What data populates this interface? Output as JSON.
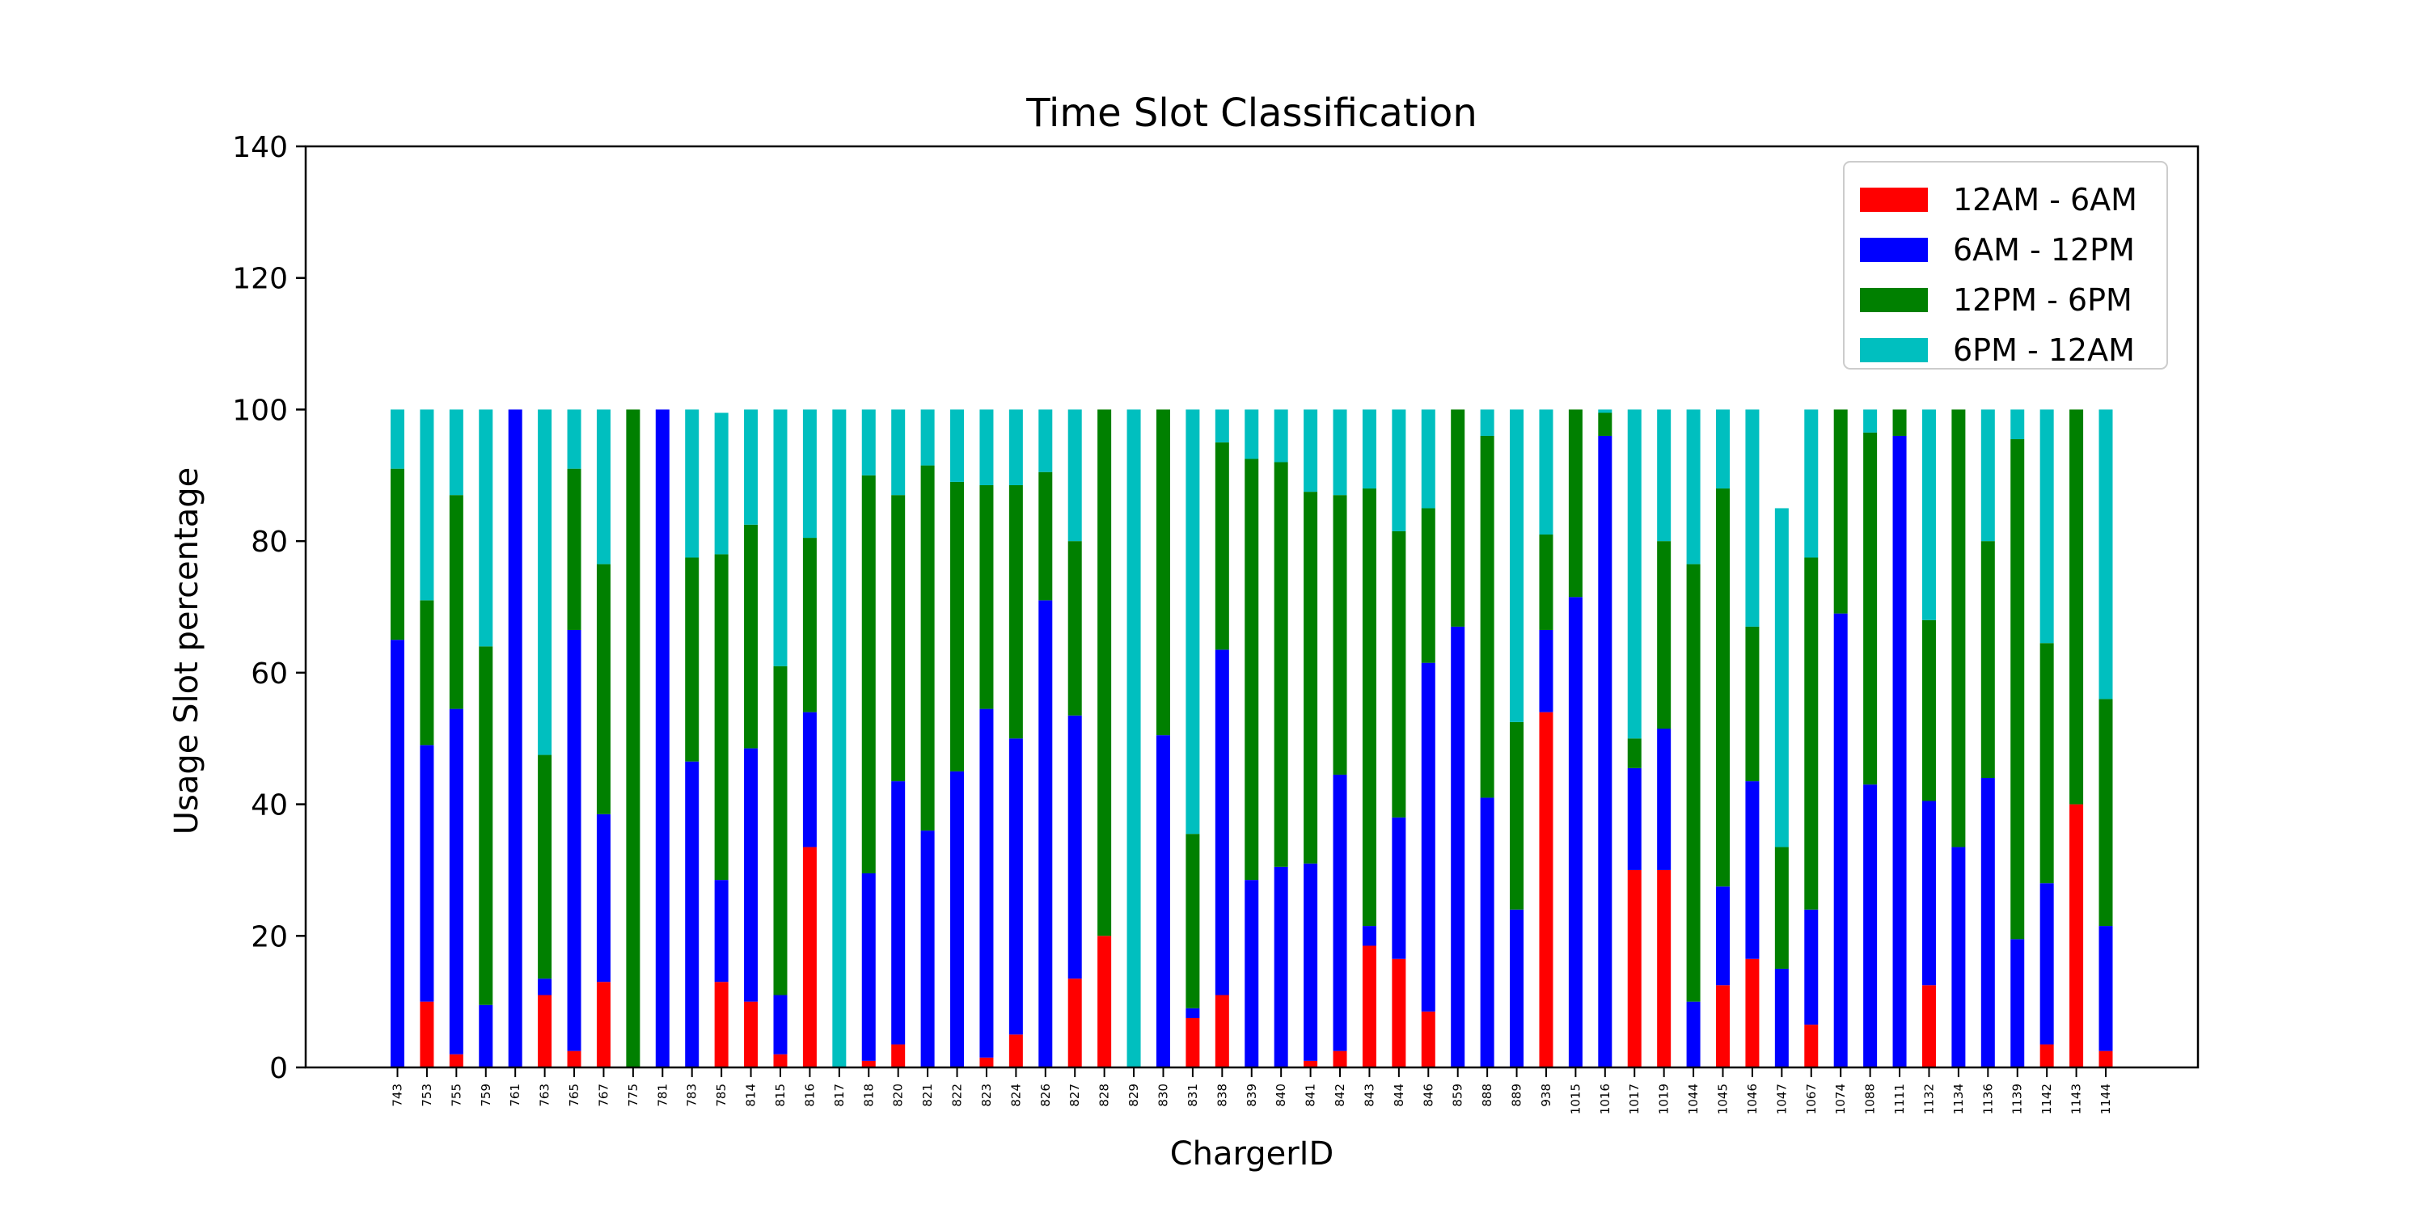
{
  "chart_data": {
    "type": "bar",
    "stacked": true,
    "title": "Time Slot Classification",
    "xlabel": "ChargerID",
    "ylabel": "Usage Slot percentage",
    "ylim": [
      0,
      140
    ],
    "yticks": [
      0,
      20,
      40,
      60,
      80,
      100,
      120,
      140
    ],
    "grid": false,
    "legend_position": "top-right",
    "categories": [
      "743",
      "753",
      "755",
      "759",
      "761",
      "763",
      "765",
      "767",
      "775",
      "781",
      "783",
      "785",
      "814",
      "815",
      "816",
      "817",
      "818",
      "820",
      "821",
      "822",
      "823",
      "824",
      "826",
      "827",
      "828",
      "829",
      "830",
      "831",
      "838",
      "839",
      "840",
      "841",
      "842",
      "843",
      "844",
      "846",
      "859",
      "888",
      "889",
      "938",
      "1015",
      "1016",
      "1017",
      "1019",
      "1044",
      "1045",
      "1046",
      "1047",
      "1067",
      "1074",
      "1088",
      "1111",
      "1132",
      "1134",
      "1136",
      "1139",
      "1142",
      "1143",
      "1144"
    ],
    "series": [
      {
        "name": "12AM - 6AM",
        "color": "#ff0000",
        "values": [
          0,
          10,
          2,
          0,
          0,
          11,
          2.5,
          13,
          0,
          0,
          0,
          13,
          10,
          2,
          33.5,
          0,
          1,
          3.5,
          0,
          0,
          1.5,
          5,
          0,
          13.5,
          20,
          0,
          0,
          7.5,
          11,
          0,
          0,
          1,
          2.5,
          18.5,
          16.5,
          8.5,
          0,
          0,
          0,
          54,
          0,
          0,
          30,
          30,
          0,
          12.5,
          16.5,
          0,
          6.5,
          0,
          0,
          0,
          12.5,
          0,
          0,
          0,
          3.5,
          40,
          2.5
        ]
      },
      {
        "name": "6AM - 12PM",
        "color": "#0000ff",
        "values": [
          65,
          39,
          52.5,
          9.5,
          100,
          2.5,
          64,
          25.5,
          0,
          100,
          46.5,
          15.5,
          38.5,
          9,
          20.5,
          0,
          28.5,
          40,
          36,
          45,
          53,
          45,
          71,
          40,
          0,
          0,
          50.5,
          1.5,
          52.5,
          28.5,
          30.5,
          30,
          42,
          3,
          21.5,
          53,
          67,
          41,
          24,
          12.5,
          71.5,
          96,
          15.5,
          21.5,
          10,
          15,
          27,
          15,
          17.5,
          69,
          43,
          96,
          28,
          33.5,
          44,
          19.5,
          24.5,
          0,
          19
        ]
      },
      {
        "name": "12PM - 6PM",
        "color": "#008000",
        "values": [
          26,
          22,
          32.5,
          54.5,
          0,
          34,
          24.5,
          38,
          100,
          0,
          31,
          49.5,
          34,
          50,
          26.5,
          0,
          60.5,
          43.5,
          55.5,
          44,
          34,
          38.5,
          19.5,
          26.5,
          80,
          0,
          49.5,
          26.5,
          31.5,
          64,
          61.5,
          56.5,
          42.5,
          66.5,
          43.5,
          23.5,
          33,
          55,
          28.5,
          14.5,
          28.5,
          3.5,
          4.5,
          28.5,
          66.5,
          60.5,
          23.5,
          18.5,
          53.5,
          31,
          53.5,
          4,
          27.5,
          66.5,
          36,
          76,
          36.5,
          60,
          34.5
        ]
      },
      {
        "name": "6PM - 12AM",
        "color": "#00bfbf",
        "values": [
          9,
          29,
          13,
          36,
          0,
          52.5,
          9,
          23.5,
          0,
          0,
          22.5,
          21.5,
          17.5,
          39,
          19.5,
          100,
          10,
          13,
          8.5,
          11,
          11.5,
          11.5,
          9.5,
          20,
          0,
          100,
          0,
          64.5,
          5,
          7.5,
          8,
          12.5,
          13,
          12,
          18.5,
          15,
          0,
          4,
          47.5,
          19,
          0,
          0.5,
          50,
          20,
          23.5,
          12,
          33,
          51.5,
          22.5,
          0,
          3.5,
          0,
          32,
          0,
          20,
          4.5,
          35.5,
          0,
          44
        ]
      }
    ]
  }
}
